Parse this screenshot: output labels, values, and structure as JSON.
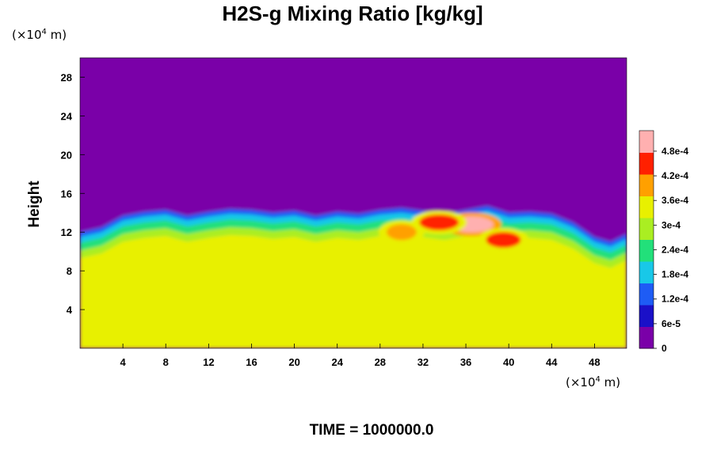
{
  "chart_data": {
    "type": "heatmap",
    "title": "H2S-g Mixing Ratio [kg/kg]",
    "ylabel": "Height",
    "x_unit": {
      "prefix": "(×10",
      "exp": "4",
      "suffix": " m)"
    },
    "y_unit": {
      "prefix": "(×10",
      "exp": "4",
      "suffix": " m)"
    },
    "xlim": [
      0,
      51
    ],
    "ylim": [
      0,
      30
    ],
    "x_ticks": [
      4,
      8,
      12,
      16,
      20,
      24,
      28,
      32,
      36,
      40,
      44,
      48
    ],
    "y_ticks": [
      4,
      8,
      12,
      16,
      20,
      24,
      28
    ],
    "colorbar": {
      "labels": [
        "0",
        "6e-5",
        "1.2e-4",
        "1.8e-4",
        "2.4e-4",
        "3e-4",
        "3.6e-4",
        "4.2e-4",
        "4.8e-4"
      ],
      "values": [
        0,
        6e-05,
        0.00012,
        0.00018,
        0.00024,
        0.0003,
        0.00036,
        0.00042,
        0.00048
      ],
      "max": 0.00053,
      "colors": [
        "#7a00a8",
        "#1a10c8",
        "#1e5cf5",
        "#18c8e8",
        "#22e07a",
        "#aaee22",
        "#e8f000",
        "#ffa000",
        "#ff2000",
        "#ffb0b0"
      ]
    },
    "layers": {
      "background_value": 0.0,
      "lower_layer_value": 0.000345,
      "lower_layer_top_height": [
        12.5,
        13.0,
        14.2,
        14.6,
        14.8,
        14.2,
        14.6,
        14.9,
        14.8,
        14.5,
        14.7,
        14.2,
        14.6,
        14.4,
        14.8,
        15.0,
        14.7,
        14.4,
        14.8,
        15.2,
        14.5,
        14.6,
        14.4,
        13.5,
        12.0,
        11.5,
        12.3
      ],
      "lower_layer_top_x": [
        0,
        2,
        4,
        6,
        8,
        10,
        12,
        14,
        16,
        18,
        20,
        22,
        24,
        26,
        28,
        30,
        32,
        34,
        36,
        38,
        40,
        42,
        44,
        46,
        48,
        49.5,
        51
      ],
      "hotspots": [
        {
          "x": 36.5,
          "y": 12.8,
          "value": 0.0005
        },
        {
          "x": 33.5,
          "y": 13.0,
          "value": 0.00045
        },
        {
          "x": 39.5,
          "y": 11.2,
          "value": 0.00043
        },
        {
          "x": 30.0,
          "y": 12.0,
          "value": 0.0004
        }
      ]
    }
  },
  "time_label": "TIME = 1000000.0"
}
